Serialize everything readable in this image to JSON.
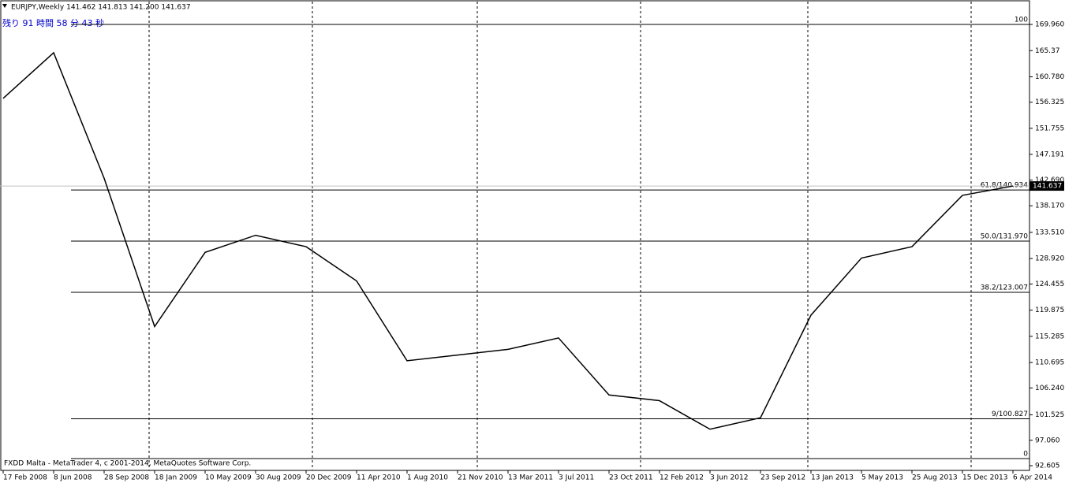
{
  "chart_data": {
    "type": "line",
    "title": "EURJPY,Weekly  141.462 141.813 141.200 141.637",
    "subtitle": "残り 91 時間 58 分 43 秒",
    "footer": "FXDD Malta - MetaTrader 4, c 2001-2014, MetaQuotes Software Corp.",
    "categories": [
      "17 Feb 2008",
      "8 Jun 2008",
      "28 Sep 2008",
      "18 Jan 2009",
      "10 May 2009",
      "30 Aug 2009",
      "20 Dec 2009",
      "11 Apr 2010",
      "1 Aug 2010",
      "21 Nov 2010",
      "13 Mar 2011",
      "3 Jul 2011",
      "23 Oct 2011",
      "12 Feb 2012",
      "3 Jun 2012",
      "23 Sep 2012",
      "13 Jan 2013",
      "5 May 2013",
      "25 Aug 2013",
      "15 Dec 2013",
      "6 Apr 2014"
    ],
    "series": [
      {
        "name": "EURJPY",
        "color": "#000000",
        "values": [
          157,
          165,
          143,
          117,
          130,
          133,
          131,
          125,
          111,
          112,
          113,
          115,
          105,
          104,
          99,
          101,
          119,
          129,
          131,
          140,
          141.637
        ]
      }
    ],
    "current_price": 141.637,
    "levels": [
      {
        "label": "100",
        "value": 169.96
      },
      {
        "label": "61.8/140.934",
        "value": 140.934
      },
      {
        "label": "50.0/131.970",
        "value": 131.97
      },
      {
        "label": "38.2/123.007",
        "value": 123.007
      },
      {
        "label": "9/100.827",
        "value": 100.827
      },
      {
        "label": "0",
        "value": 93.85
      }
    ],
    "ylim": [
      91.78,
      173.97
    ],
    "yticks": [
      {
        "value": 169.96,
        "label": "169.960"
      },
      165.37,
      {
        "value": 160.78,
        "label": "160.780"
      },
      156.325,
      151.755,
      147.191,
      {
        "value": 142.69,
        "label": "142.690"
      },
      {
        "value": 138.17,
        "label": "138.170"
      },
      {
        "value": 133.51,
        "label": "133.510"
      },
      {
        "value": 128.92,
        "label": "128.920"
      },
      124.455,
      119.875,
      115.285,
      110.695,
      {
        "value": 106.24,
        "label": "106.240"
      },
      101.525,
      {
        "value": 97.06,
        "label": "97.060"
      },
      92.605
    ]
  }
}
